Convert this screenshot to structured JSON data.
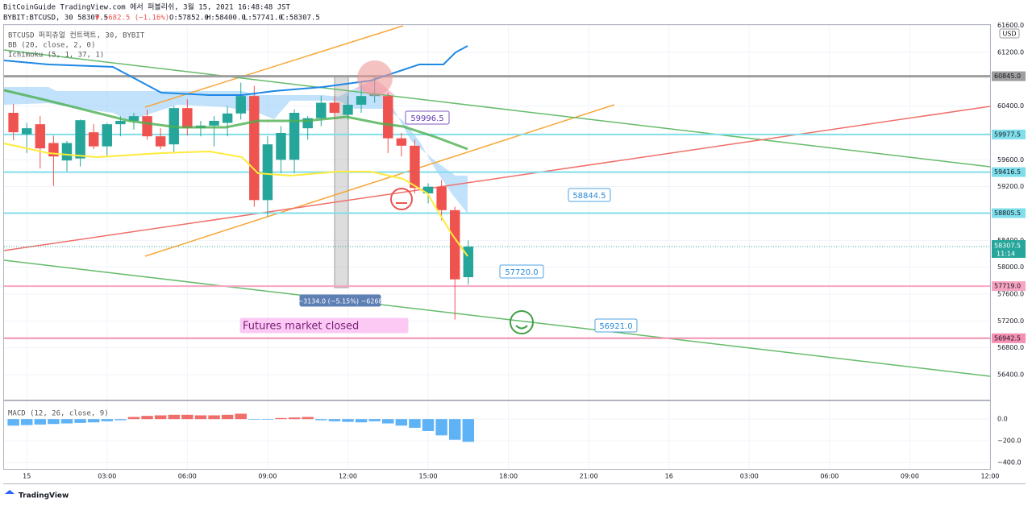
{
  "chart_data": {
    "type": "candlestick",
    "title": "BitCoinGuide TradingView.com 에서 퍼블리쉬, 3월 15, 2021 16:48:48 JST",
    "subtitle": "BYBIT:BTCUSD, 30 58307.5",
    "change": "▼ −682.5 (−1.16%)",
    "ohlc_text": [
      "O:57852.0",
      "H:58400.0",
      "L:57741.0",
      "C:58307.5"
    ],
    "legend": [
      "BTCUSD 퍼피츄얼 컨트랙트, 30, BYBIT",
      "BB (20, close, 2, 0)",
      "Ichimoku (5, 1, 37, 1)"
    ],
    "currency": "USD",
    "up_color": "#26a69a",
    "down_color": "#ef5350",
    "x": [
      -0.5,
      0,
      0.5,
      1,
      1.5,
      2,
      2.5,
      3,
      3.5,
      4,
      4.5,
      5,
      5.5,
      6,
      6.5,
      7,
      7.5,
      8,
      8.5,
      9,
      9.5,
      10,
      10.5,
      11,
      11.5,
      12,
      12.5,
      13,
      13.5,
      14,
      14.5,
      15,
      15.5,
      16,
      16.5
    ],
    "open": [
      60300,
      59980,
      60130,
      59850,
      59590,
      59620,
      60010,
      59800,
      60130,
      60180,
      60250,
      59950,
      59830,
      60370,
      60070,
      60110,
      60150,
      60290,
      60550,
      59000,
      59600,
      59600,
      60070,
      60220,
      60450,
      60270,
      60420,
      60550,
      60550,
      59920,
      59810,
      59100,
      59200,
      58850,
      57852
    ],
    "high": [
      60430,
      60150,
      60250,
      59960,
      59880,
      60200,
      60130,
      60150,
      60250,
      60300,
      60350,
      60070,
      60400,
      60500,
      60180,
      60250,
      60400,
      60750,
      60700,
      59950,
      60100,
      60350,
      60250,
      60550,
      60550,
      60550,
      60750,
      60850,
      60600,
      60000,
      59900,
      59250,
      59300,
      58900,
      58400
    ],
    "low": [
      59890,
      59700,
      59470,
      59210,
      59430,
      59500,
      59760,
      59640,
      59950,
      60050,
      59900,
      59760,
      59700,
      59960,
      59950,
      59800,
      59950,
      60200,
      58900,
      58750,
      59400,
      59400,
      59900,
      60100,
      60200,
      60200,
      60300,
      60450,
      59700,
      59650,
      59100,
      58950,
      58700,
      57220,
      57741
    ],
    "close": [
      60010,
      60070,
      59770,
      59650,
      59850,
      60190,
      59800,
      60130,
      60180,
      60250,
      59950,
      59800,
      60370,
      60070,
      60110,
      60180,
      60290,
      60550,
      59000,
      59830,
      60000,
      60300,
      60220,
      60450,
      60300,
      60420,
      60550,
      60580,
      59920,
      59810,
      59180,
      59200,
      58850,
      57820,
      58307.5
    ],
    "xlim": [
      -0.85,
      36.0
    ],
    "xticks": [
      {
        "value": 0,
        "label": "15"
      },
      {
        "value": 3,
        "label": "03:00"
      },
      {
        "value": 6,
        "label": "06:00"
      },
      {
        "value": 9,
        "label": "09:00"
      },
      {
        "value": 12,
        "label": "12:00"
      },
      {
        "value": 15,
        "label": "15:00"
      },
      {
        "value": 18,
        "label": "18:00"
      },
      {
        "value": 21,
        "label": "21:00"
      },
      {
        "value": 24,
        "label": "16"
      },
      {
        "value": 27,
        "label": "03:00"
      },
      {
        "value": 30,
        "label": "06:00"
      },
      {
        "value": 33,
        "label": "09:00"
      },
      {
        "value": 36,
        "label": "12:00"
      }
    ],
    "ylim": [
      56040,
      61620
    ],
    "yticks": [
      {
        "value": 61600,
        "label": "61600.0"
      },
      {
        "value": 61200,
        "label": "61200.0"
      },
      {
        "value": 60400,
        "label": "60400.0"
      },
      {
        "value": 59600,
        "label": "59600.0"
      },
      {
        "value": 59200,
        "label": "59200.0"
      },
      {
        "value": 58400,
        "label": "58400.0"
      },
      {
        "value": 58000,
        "label": "58000.0"
      },
      {
        "value": 57600,
        "label": "57600.0"
      },
      {
        "value": 57200,
        "label": "57200.0"
      },
      {
        "value": 56800,
        "label": "56800.0"
      },
      {
        "value": 56400,
        "label": "56400.0"
      }
    ],
    "price_lines": [
      {
        "value": 60845,
        "label": "60845.0",
        "color": "#9e9e9e"
      },
      {
        "value": 59977.5,
        "label": "59977.5",
        "color": "#80deea"
      },
      {
        "value": 59416.5,
        "label": "59416.5",
        "color": "#80deea"
      },
      {
        "value": 58805.5,
        "label": "58805.5",
        "color": "#80deea"
      },
      {
        "value": 57719,
        "label": "57719.0",
        "color": "#f8a5c2"
      },
      {
        "value": 56942.5,
        "label": "56942.5",
        "color": "#f48fb1"
      }
    ],
    "last_price": {
      "value": 58307.5,
      "label": "58307.5",
      "countdown": "11:14",
      "color": "#26a69a"
    },
    "annotations": [
      "59996.5",
      "58844.5",
      "57720.0",
      "56921.0",
      "−3134.0 (−5.15%) −6268",
      "Futures market closed"
    ],
    "macd": {
      "title": "MACD (12, 26, close, 9)",
      "values": [
        -60,
        -55,
        -50,
        -45,
        -40,
        -35,
        -30,
        -20,
        -10,
        20,
        30,
        35,
        40,
        40,
        35,
        35,
        40,
        50,
        -5,
        -5,
        10,
        15,
        20,
        -10,
        -20,
        -25,
        -30,
        -20,
        -40,
        -60,
        -80,
        -110,
        -150,
        -190,
        -210
      ],
      "up_color": "#ef5350",
      "down_color": "#42a5f5",
      "ylim": [
        -460,
        165
      ],
      "yticks": [
        {
          "value": 0,
          "label": "0.0"
        },
        {
          "value": -200,
          "label": "−200.0"
        },
        {
          "value": -400,
          "label": "−400.0"
        }
      ]
    },
    "brand": "TradingView"
  }
}
